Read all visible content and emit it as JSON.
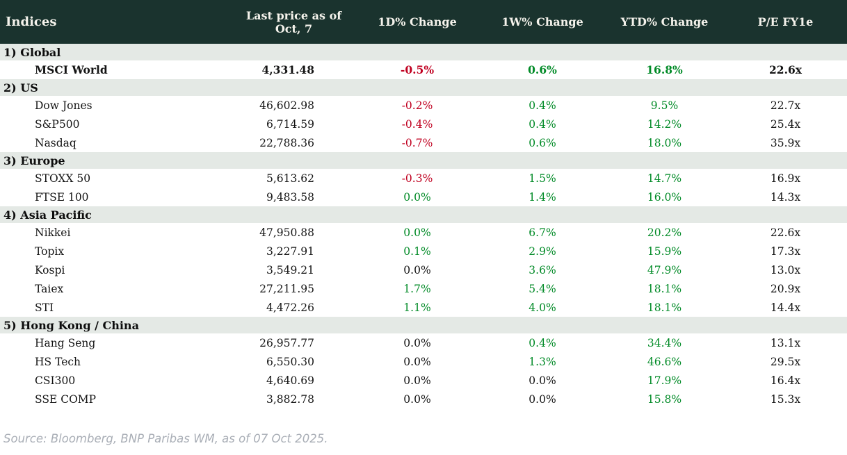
{
  "colors": {
    "header_bg": "#1a332e",
    "header_text": "#f5f3ec",
    "section_bg": "#e4e9e5",
    "positive": "#008a26",
    "negative": "#c00020",
    "neutral": "#141414",
    "footer_text": "#a9aeb6"
  },
  "chart_data": {
    "type": "table",
    "title": "Indices",
    "columns": [
      "Indices",
      "Last price as of Oct, 7",
      "1D% Change",
      "1W% Change",
      "YTD% Change",
      "P/E FY1e"
    ],
    "sections": [
      {
        "label": "1) Global",
        "rows": [
          {
            "name": "MSCI World",
            "last_price": "4,331.48",
            "d1": {
              "text": "-0.5%",
              "tone": "negative"
            },
            "w1": {
              "text": "0.6%",
              "tone": "positive"
            },
            "ytd": {
              "text": "16.8%",
              "tone": "positive"
            },
            "pe": "22.6x",
            "bold": true
          }
        ]
      },
      {
        "label": "2) US",
        "rows": [
          {
            "name": "Dow Jones",
            "last_price": "46,602.98",
            "d1": {
              "text": "-0.2%",
              "tone": "negative"
            },
            "w1": {
              "text": "0.4%",
              "tone": "positive"
            },
            "ytd": {
              "text": "9.5%",
              "tone": "positive"
            },
            "pe": "22.7x",
            "bold": false
          },
          {
            "name": "S&P500",
            "last_price": "6,714.59",
            "d1": {
              "text": "-0.4%",
              "tone": "negative"
            },
            "w1": {
              "text": "0.4%",
              "tone": "positive"
            },
            "ytd": {
              "text": "14.2%",
              "tone": "positive"
            },
            "pe": "25.4x",
            "bold": false
          },
          {
            "name": "Nasdaq",
            "last_price": "22,788.36",
            "d1": {
              "text": "-0.7%",
              "tone": "negative"
            },
            "w1": {
              "text": "0.6%",
              "tone": "positive"
            },
            "ytd": {
              "text": "18.0%",
              "tone": "positive"
            },
            "pe": "35.9x",
            "bold": false
          }
        ]
      },
      {
        "label": "3) Europe",
        "rows": [
          {
            "name": "STOXX 50",
            "last_price": "5,613.62",
            "d1": {
              "text": "-0.3%",
              "tone": "negative"
            },
            "w1": {
              "text": "1.5%",
              "tone": "positive"
            },
            "ytd": {
              "text": "14.7%",
              "tone": "positive"
            },
            "pe": "16.9x",
            "bold": false
          },
          {
            "name": "FTSE 100",
            "last_price": "9,483.58",
            "d1": {
              "text": "0.0%",
              "tone": "positive"
            },
            "w1": {
              "text": "1.4%",
              "tone": "positive"
            },
            "ytd": {
              "text": "16.0%",
              "tone": "positive"
            },
            "pe": "14.3x",
            "bold": false
          }
        ]
      },
      {
        "label": "4) Asia Pacific",
        "rows": [
          {
            "name": "Nikkei",
            "last_price": "47,950.88",
            "d1": {
              "text": "0.0%",
              "tone": "positive"
            },
            "w1": {
              "text": "6.7%",
              "tone": "positive"
            },
            "ytd": {
              "text": "20.2%",
              "tone": "positive"
            },
            "pe": "22.6x",
            "bold": false
          },
          {
            "name": "Topix",
            "last_price": "3,227.91",
            "d1": {
              "text": "0.1%",
              "tone": "positive"
            },
            "w1": {
              "text": "2.9%",
              "tone": "positive"
            },
            "ytd": {
              "text": "15.9%",
              "tone": "positive"
            },
            "pe": "17.3x",
            "bold": false
          },
          {
            "name": "Kospi",
            "last_price": "3,549.21",
            "d1": {
              "text": "0.0%",
              "tone": "neutral"
            },
            "w1": {
              "text": "3.6%",
              "tone": "positive"
            },
            "ytd": {
              "text": "47.9%",
              "tone": "positive"
            },
            "pe": "13.0x",
            "bold": false
          },
          {
            "name": "Taiex",
            "last_price": "27,211.95",
            "d1": {
              "text": "1.7%",
              "tone": "positive"
            },
            "w1": {
              "text": "5.4%",
              "tone": "positive"
            },
            "ytd": {
              "text": "18.1%",
              "tone": "positive"
            },
            "pe": "20.9x",
            "bold": false
          },
          {
            "name": "STI",
            "last_price": "4,472.26",
            "d1": {
              "text": "1.1%",
              "tone": "positive"
            },
            "w1": {
              "text": "4.0%",
              "tone": "positive"
            },
            "ytd": {
              "text": "18.1%",
              "tone": "positive"
            },
            "pe": "14.4x",
            "bold": false
          }
        ]
      },
      {
        "label": "5) Hong Kong / China",
        "rows": [
          {
            "name": "Hang Seng",
            "last_price": "26,957.77",
            "d1": {
              "text": "0.0%",
              "tone": "neutral"
            },
            "w1": {
              "text": "0.4%",
              "tone": "positive"
            },
            "ytd": {
              "text": "34.4%",
              "tone": "positive"
            },
            "pe": "13.1x",
            "bold": false
          },
          {
            "name": "HS Tech",
            "last_price": "6,550.30",
            "d1": {
              "text": "0.0%",
              "tone": "neutral"
            },
            "w1": {
              "text": "1.3%",
              "tone": "positive"
            },
            "ytd": {
              "text": "46.6%",
              "tone": "positive"
            },
            "pe": "29.5x",
            "bold": false
          },
          {
            "name": "CSI300",
            "last_price": "4,640.69",
            "d1": {
              "text": "0.0%",
              "tone": "neutral"
            },
            "w1": {
              "text": "0.0%",
              "tone": "neutral"
            },
            "ytd": {
              "text": "17.9%",
              "tone": "positive"
            },
            "pe": "16.4x",
            "bold": false
          },
          {
            "name": "SSE COMP",
            "last_price": "3,882.78",
            "d1": {
              "text": "0.0%",
              "tone": "neutral"
            },
            "w1": {
              "text": "0.0%",
              "tone": "neutral"
            },
            "ytd": {
              "text": "15.8%",
              "tone": "positive"
            },
            "pe": "15.3x",
            "bold": false
          }
        ]
      }
    ]
  },
  "footer": {
    "source": "Source: Bloomberg, BNP Paribas WM, as of 07 Oct 2025."
  }
}
